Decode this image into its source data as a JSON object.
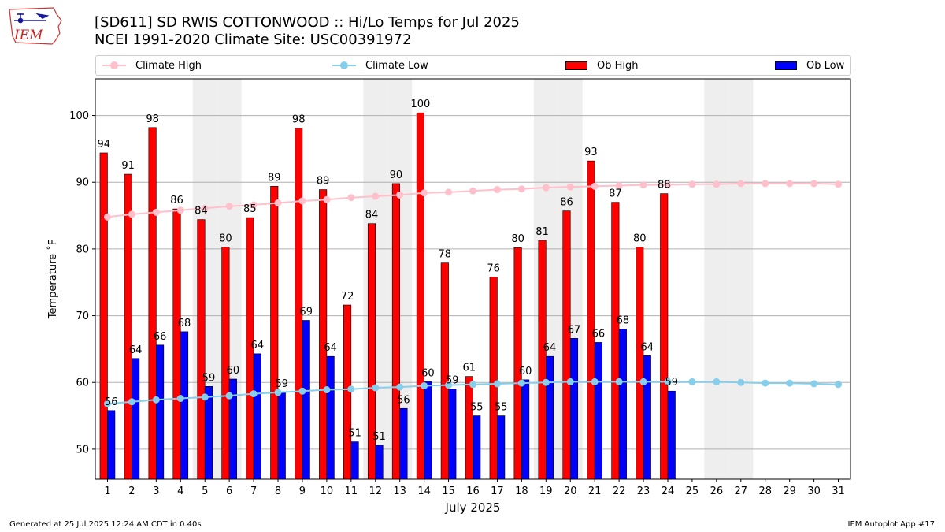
{
  "header": {
    "title_line1": "[SD611] SD RWIS COTTONWOOD :: Hi/Lo Temps for Jul 2025",
    "title_line2": "NCEI 1991-2020 Climate Site: USC00391972",
    "logo_text": "IEM",
    "logo_icon": "iowa-state-outline-weather-station-icon"
  },
  "legend": {
    "climate_high": "Climate High",
    "climate_low": "Climate Low",
    "ob_high": "Ob High",
    "ob_low": "Ob Low"
  },
  "colors": {
    "ob_high": "#ff0000",
    "ob_low": "#0000ff",
    "climate_high": "#ffc0cb",
    "climate_low": "#87ceeb",
    "weekend_shade": "#eeeeee",
    "grid": "#b0b0b0"
  },
  "footer": {
    "generated": "Generated at 25 Jul 2025 12:24 AM CDT in 0.40s",
    "app": "IEM Autoplot App #17"
  },
  "chart_data": {
    "type": "bar",
    "xlabel": "July 2025",
    "ylabel": "Temperature ˚F",
    "categories": [
      "1",
      "2",
      "3",
      "4",
      "5",
      "6",
      "7",
      "8",
      "9",
      "10",
      "11",
      "12",
      "13",
      "14",
      "15",
      "16",
      "17",
      "18",
      "19",
      "20",
      "21",
      "22",
      "23",
      "24",
      "25",
      "26",
      "27",
      "28",
      "29",
      "30",
      "31"
    ],
    "ylim": [
      45.5,
      105.5
    ],
    "yticks": [
      50,
      60,
      70,
      80,
      90,
      100
    ],
    "grid": "horizontal",
    "legend_position": "top",
    "weekend_shaded_days": [
      5,
      6,
      12,
      13,
      19,
      20,
      26,
      27
    ],
    "series": [
      {
        "name": "Ob High",
        "kind": "bar",
        "values": [
          94.4,
          91.2,
          98.2,
          86.0,
          84.4,
          80.3,
          84.7,
          89.4,
          98.1,
          88.9,
          71.6,
          83.8,
          89.8,
          100.4,
          77.9,
          60.9,
          75.8,
          80.2,
          81.3,
          85.7,
          93.2,
          87.0,
          80.3,
          88.3,
          null,
          null,
          null,
          null,
          null,
          null,
          null
        ],
        "labels": [
          "94",
          "91",
          "98",
          "86",
          "84",
          "80",
          "85",
          "89",
          "98",
          "89",
          "72",
          "84",
          "90",
          "100",
          "78",
          "61",
          "76",
          "80",
          "81",
          "86",
          "93",
          "87",
          "80",
          "88",
          "",
          "",
          "",
          "",
          "",
          "",
          ""
        ]
      },
      {
        "name": "Ob Low",
        "kind": "bar",
        "values": [
          55.8,
          63.6,
          65.6,
          67.6,
          59.4,
          60.5,
          64.3,
          58.5,
          69.3,
          63.9,
          51.1,
          50.6,
          56.1,
          60.1,
          59.0,
          55.0,
          55.0,
          60.4,
          63.9,
          66.6,
          66.0,
          68.0,
          64.0,
          58.7,
          null,
          null,
          null,
          null,
          null,
          null,
          null
        ],
        "labels": [
          "56",
          "64",
          "66",
          "68",
          "59",
          "60",
          "64",
          "59",
          "69",
          "64",
          "51",
          "51",
          "56",
          "60",
          "59",
          "55",
          "55",
          "60",
          "64",
          "67",
          "66",
          "68",
          "64",
          "59",
          "",
          "",
          "",
          "",
          "",
          "",
          ""
        ]
      },
      {
        "name": "Climate High",
        "kind": "line",
        "values": [
          84.8,
          85.2,
          85.5,
          85.8,
          86.1,
          86.4,
          86.6,
          86.9,
          87.2,
          87.4,
          87.7,
          87.9,
          88.1,
          88.4,
          88.5,
          88.7,
          88.9,
          89.0,
          89.2,
          89.3,
          89.4,
          89.5,
          89.6,
          89.6,
          89.7,
          89.7,
          89.8,
          89.8,
          89.8,
          89.8,
          89.7
        ]
      },
      {
        "name": "Climate Low",
        "kind": "line",
        "values": [
          56.8,
          57.1,
          57.4,
          57.6,
          57.8,
          58.0,
          58.3,
          58.5,
          58.7,
          58.9,
          59.0,
          59.2,
          59.3,
          59.5,
          59.6,
          59.7,
          59.8,
          59.9,
          60.0,
          60.1,
          60.1,
          60.1,
          60.1,
          60.1,
          60.1,
          60.1,
          60.0,
          59.9,
          59.9,
          59.8,
          59.7
        ]
      }
    ]
  }
}
